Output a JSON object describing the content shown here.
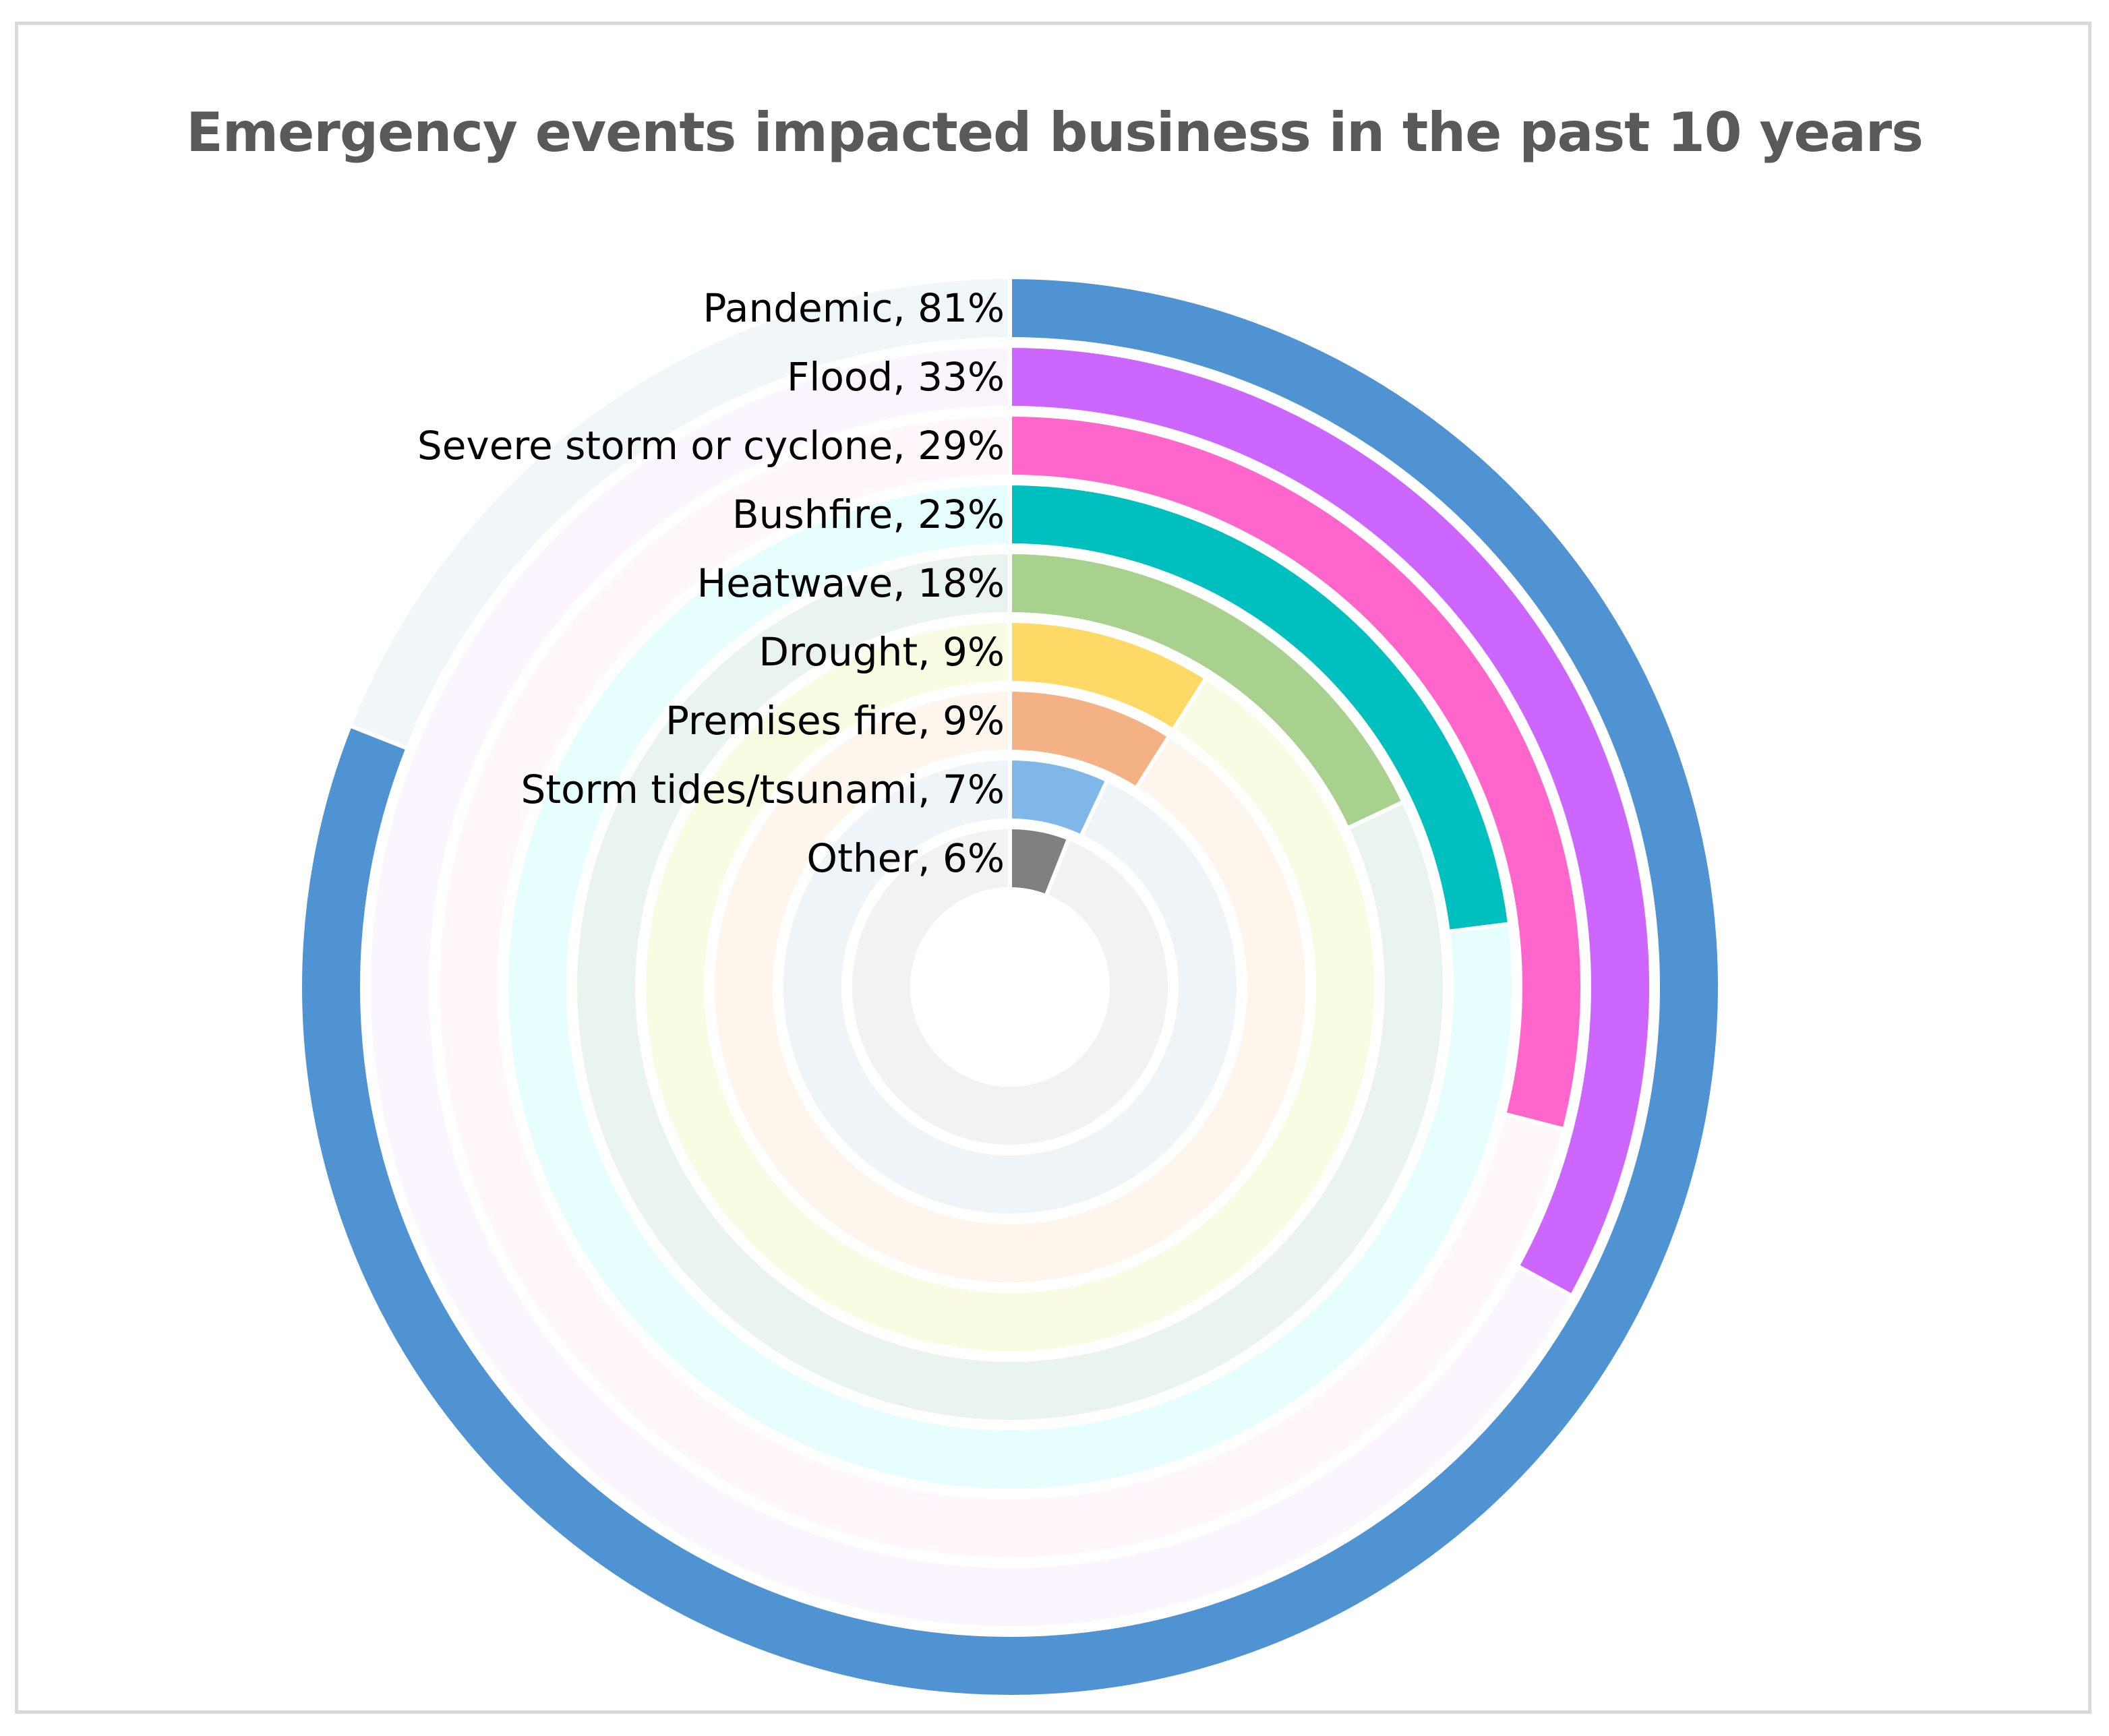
{
  "chart_data": {
    "type": "radial-bar",
    "title": "Emergency events impacted business in the past 10 years",
    "max_value": 100,
    "unit": "%",
    "categories": [
      "Pandemic",
      "Flood",
      "Severe storm or cyclone",
      "Bushfire",
      "Heatwave",
      "Drought",
      "Premises fire",
      "Storm tides/tsunami",
      "Other"
    ],
    "values": [
      81,
      33,
      29,
      23,
      18,
      9,
      9,
      7,
      6
    ],
    "labels": [
      "Pandemic, 81%",
      "Flood, 33%",
      "Severe storm or cyclone, 29%",
      "Bushfire, 23%",
      "Heatwave, 18%",
      "Drought, 9%",
      "Premises fire, 9%",
      "Storm tides/tsunami, 7%",
      "Other, 6%"
    ],
    "colors": [
      "#4F93D2",
      "#CC66FF",
      "#FF66CC",
      "#00BFBF",
      "#A9D18E",
      "#FFD966",
      "#F4B183",
      "#7FB8E8",
      "#808080"
    ],
    "track_colors": [
      "#F1F6F8",
      "#FBF5FF",
      "#FFF7FC",
      "#E6FEFE",
      "#EAF4EE",
      "#FAFBE3",
      "#FEF5EC",
      "#EFF4F9",
      "#F2F2F2"
    ]
  }
}
